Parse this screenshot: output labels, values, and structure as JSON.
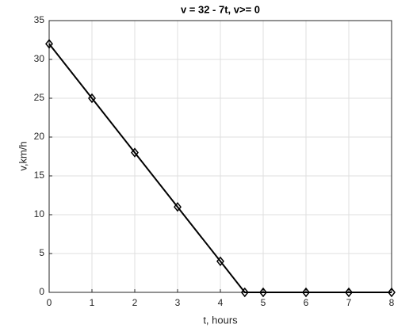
{
  "chart_data": {
    "type": "line",
    "title": "v = 32 - 7t, v>= 0",
    "x_label": "t, hours",
    "y_label": "v,km/h",
    "x": [
      0,
      1,
      2,
      3,
      4,
      4.57,
      5,
      6,
      7,
      8
    ],
    "series": [
      {
        "color": "#000000",
        "values": [
          32,
          25,
          18,
          11,
          4,
          0,
          0,
          0,
          0,
          0
        ]
      }
    ],
    "xlim": [
      0,
      8
    ],
    "xticks": [
      0,
      1,
      2,
      3,
      4,
      5,
      6,
      7,
      8
    ],
    "ylim": [
      0,
      35
    ],
    "yticks": [
      0,
      5,
      10,
      15,
      20,
      25,
      30,
      35
    ],
    "grid": true
  }
}
